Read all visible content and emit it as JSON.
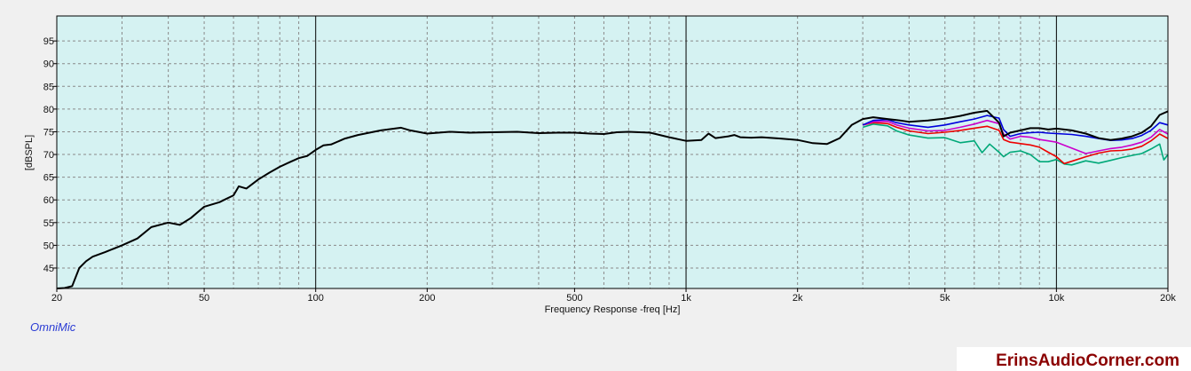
{
  "chart_data": {
    "type": "line",
    "title": "",
    "xlabel": "Frequency Response -freq [Hz]",
    "ylabel": "[dBSPL]",
    "x_scale": "log",
    "xlim": [
      20,
      20000
    ],
    "ylim": [
      40.5,
      100.5
    ],
    "grid": true,
    "legend": "none",
    "x_ticks": [
      {
        "value": 20,
        "label": "20"
      },
      {
        "value": 50,
        "label": "50"
      },
      {
        "value": 100,
        "label": "100"
      },
      {
        "value": 200,
        "label": "200"
      },
      {
        "value": 500,
        "label": "500"
      },
      {
        "value": 1000,
        "label": "1k"
      },
      {
        "value": 2000,
        "label": "2k"
      },
      {
        "value": 5000,
        "label": "5k"
      },
      {
        "value": 10000,
        "label": "10k"
      },
      {
        "value": 20000,
        "label": "20k"
      }
    ],
    "y_ticks": [
      45,
      50,
      55,
      60,
      65,
      70,
      75,
      80,
      85,
      90,
      95
    ],
    "colors": {
      "plot_background": "#d5f2f2",
      "grid": "#8a8a8a",
      "decade_line": "#000000"
    },
    "series": [
      {
        "color": "#000000",
        "x": [
          20,
          21,
          22,
          23,
          24,
          25,
          27,
          30,
          33,
          36,
          40,
          43,
          46,
          50,
          55,
          60,
          62,
          65,
          70,
          75,
          80,
          85,
          90,
          95,
          100,
          105,
          110,
          120,
          130,
          150,
          170,
          180,
          200,
          230,
          260,
          300,
          350,
          400,
          450,
          500,
          550,
          600,
          650,
          700,
          800,
          900,
          1000,
          1100,
          1150,
          1200,
          1300,
          1350,
          1400,
          1500,
          1600,
          1800,
          2000,
          2200,
          2400,
          2600,
          2800,
          3000,
          3200,
          3500,
          3700,
          4000,
          4500,
          5000,
          5500,
          6000,
          6500,
          7000,
          7200,
          7500,
          8000,
          8500,
          9000,
          9500,
          10000,
          11000,
          12000,
          13000,
          14000,
          15000,
          16000,
          17000,
          18000,
          19000,
          20000
        ],
        "y": [
          40.5,
          40.6,
          41,
          45,
          46.5,
          47.5,
          48.5,
          50,
          51.5,
          54,
          55,
          54.5,
          56,
          58.5,
          59.5,
          61,
          63,
          62.5,
          64.5,
          66,
          67.3,
          68.3,
          69.2,
          69.7,
          71,
          72,
          72.2,
          73.5,
          74.3,
          75.3,
          75.9,
          75.3,
          74.6,
          75,
          74.8,
          74.9,
          75,
          74.7,
          74.8,
          74.8,
          74.6,
          74.5,
          74.9,
          75,
          74.8,
          73.8,
          73,
          73.2,
          74.6,
          73.6,
          74,
          74.3,
          73.8,
          73.7,
          73.8,
          73.5,
          73.2,
          72.5,
          72.3,
          73.6,
          76.5,
          77.8,
          78.2,
          77.8,
          77.6,
          77.2,
          77.5,
          77.9,
          78.5,
          79.2,
          79.6,
          77,
          74,
          74.8,
          75.3,
          75.8,
          75.8,
          75.5,
          75.7,
          75.3,
          74.6,
          73.6,
          73.2,
          73.5,
          74,
          74.8,
          76.2,
          78.7,
          79.5
        ]
      },
      {
        "color": "#0000dd",
        "x": [
          3000,
          3200,
          3500,
          3700,
          4000,
          4500,
          5000,
          5500,
          6000,
          6500,
          7000,
          7200,
          7500,
          8000,
          8500,
          9000,
          9500,
          10000,
          11000,
          12000,
          13000,
          14000,
          15000,
          16000,
          17000,
          18000,
          19000,
          20000
        ],
        "y": [
          76.5,
          77.5,
          77.7,
          77,
          76.5,
          76,
          76.5,
          77.2,
          77.8,
          78.6,
          78,
          75.5,
          74,
          74.6,
          74.8,
          74.9,
          74.7,
          74.6,
          74.4,
          74,
          73.5,
          73.1,
          73.2,
          73.5,
          74.2,
          75.3,
          77,
          76.5
        ]
      },
      {
        "color": "#cc00cc",
        "x": [
          3000,
          3200,
          3500,
          3700,
          4000,
          4500,
          5000,
          5500,
          6000,
          6500,
          7000,
          7200,
          7500,
          8000,
          8500,
          9000,
          9500,
          10000,
          11000,
          12000,
          13000,
          14000,
          15000,
          16000,
          17000,
          18000,
          19000,
          20000
        ],
        "y": [
          76.5,
          77.2,
          77.3,
          76.5,
          75.8,
          75.2,
          75.3,
          76,
          76.7,
          77.5,
          76.8,
          74.5,
          73.4,
          74,
          73.8,
          73.3,
          73,
          72.7,
          71.4,
          70.2,
          70.8,
          71.3,
          71.6,
          72.1,
          72.7,
          73.8,
          75.5,
          74.5
        ]
      },
      {
        "color": "#ee0000",
        "x": [
          3000,
          3200,
          3500,
          3700,
          4000,
          4500,
          5000,
          5500,
          6000,
          6500,
          7000,
          7200,
          7500,
          8000,
          8500,
          9000,
          9500,
          10000,
          10500,
          11000,
          12000,
          13000,
          14000,
          15000,
          16000,
          17000,
          18000,
          19000,
          20000
        ],
        "y": [
          76.5,
          77,
          76.8,
          76,
          75.2,
          74.6,
          74.9,
          75.3,
          75.8,
          76.2,
          75.3,
          73.3,
          72.7,
          72.4,
          72.1,
          71.6,
          70.5,
          69.5,
          68,
          68.5,
          69.5,
          70.3,
          70.8,
          70.9,
          71.2,
          71.8,
          73,
          74.5,
          73.5
        ]
      },
      {
        "color": "#00a878",
        "x": [
          3000,
          3200,
          3500,
          3700,
          4000,
          4500,
          5000,
          5500,
          6000,
          6300,
          6600,
          7000,
          7200,
          7500,
          8000,
          8500,
          9000,
          9500,
          10000,
          10500,
          11000,
          12000,
          13000,
          14000,
          15000,
          16000,
          17000,
          18000,
          19000,
          19500,
          20000
        ],
        "y": [
          76,
          76.7,
          76.3,
          75.2,
          74.3,
          73.6,
          73.7,
          72.6,
          73,
          70.4,
          72.3,
          70.5,
          69.5,
          70.5,
          70.8,
          70,
          68.4,
          68.4,
          68.9,
          67.9,
          67.7,
          68.6,
          68.1,
          68.7,
          69.3,
          69.8,
          70.2,
          71.2,
          72.3,
          68.8,
          70
        ]
      }
    ]
  },
  "branding": {
    "logo": "OmniMic",
    "logo_color": "#2a3bd4",
    "watermark": "ErinsAudioCorner.com",
    "watermark_color": "#8b0000"
  }
}
